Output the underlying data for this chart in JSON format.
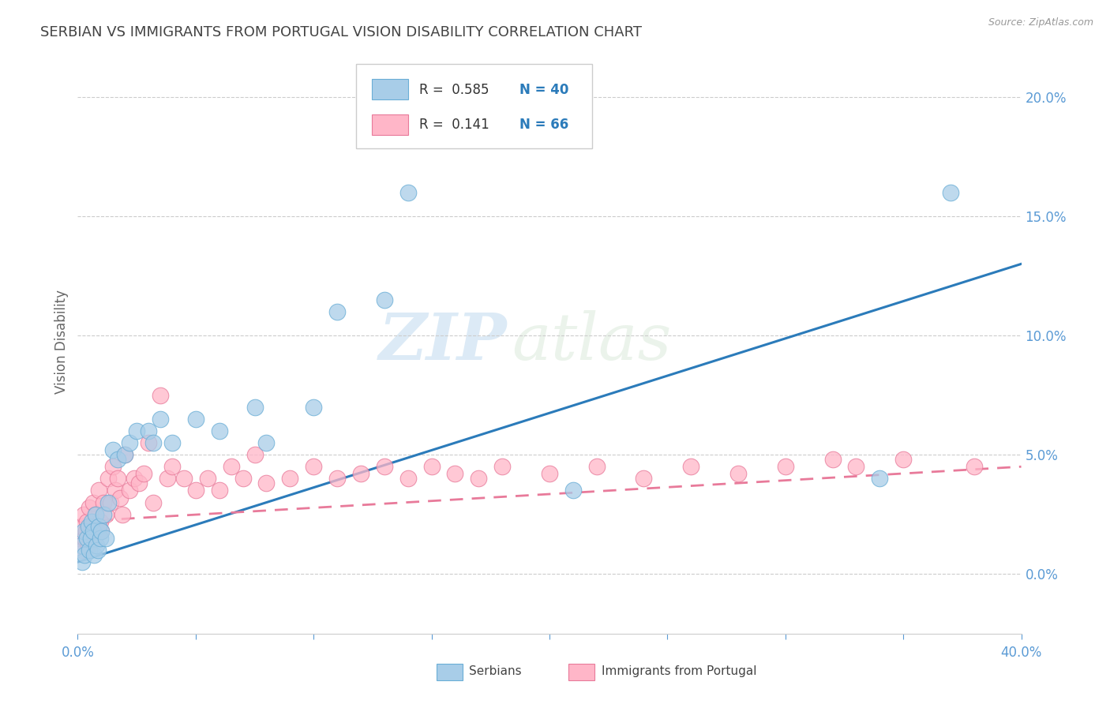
{
  "title": "SERBIAN VS IMMIGRANTS FROM PORTUGAL VISION DISABILITY CORRELATION CHART",
  "source": "Source: ZipAtlas.com",
  "ylabel": "Vision Disability",
  "yticks": [
    "0.0%",
    "5.0%",
    "10.0%",
    "15.0%",
    "20.0%"
  ],
  "ytick_values": [
    0.0,
    5.0,
    10.0,
    15.0,
    20.0
  ],
  "xrange": [
    0.0,
    40.0
  ],
  "yrange": [
    -2.5,
    22.0
  ],
  "legend_r1": "R =  0.585",
  "legend_n1": "N = 40",
  "legend_r2": "R =  0.141",
  "legend_n2": "N = 66",
  "watermark_zip": "ZIP",
  "watermark_atlas": "atlas",
  "series_serbian": {
    "color": "#a8cde8",
    "color_edge": "#6aaed6",
    "label": "Serbians",
    "x": [
      0.15,
      0.2,
      0.25,
      0.3,
      0.4,
      0.45,
      0.5,
      0.55,
      0.6,
      0.65,
      0.7,
      0.75,
      0.8,
      0.85,
      0.9,
      0.95,
      1.0,
      1.1,
      1.2,
      1.3,
      1.5,
      1.7,
      2.0,
      2.2,
      2.5,
      3.0,
      3.2,
      3.5,
      4.0,
      5.0,
      6.0,
      7.5,
      8.0,
      10.0,
      11.0,
      13.0,
      14.0,
      21.0,
      34.0,
      37.0
    ],
    "y": [
      1.2,
      0.5,
      1.8,
      0.8,
      1.5,
      2.0,
      1.0,
      1.5,
      2.2,
      1.8,
      0.8,
      2.5,
      1.2,
      1.0,
      2.0,
      1.5,
      1.8,
      2.5,
      1.5,
      3.0,
      5.2,
      4.8,
      5.0,
      5.5,
      6.0,
      6.0,
      5.5,
      6.5,
      5.5,
      6.5,
      6.0,
      7.0,
      5.5,
      7.0,
      11.0,
      11.5,
      16.0,
      3.5,
      4.0,
      16.0
    ]
  },
  "series_portugal": {
    "color": "#ffb6c8",
    "color_edge": "#e87a9a",
    "label": "Immigrants from Portugal",
    "x": [
      0.1,
      0.15,
      0.2,
      0.25,
      0.3,
      0.35,
      0.4,
      0.45,
      0.5,
      0.55,
      0.6,
      0.65,
      0.7,
      0.75,
      0.8,
      0.85,
      0.9,
      0.95,
      1.0,
      1.1,
      1.2,
      1.3,
      1.4,
      1.5,
      1.6,
      1.7,
      1.8,
      1.9,
      2.0,
      2.2,
      2.4,
      2.6,
      2.8,
      3.0,
      3.2,
      3.5,
      3.8,
      4.0,
      4.5,
      5.0,
      5.5,
      6.0,
      6.5,
      7.0,
      7.5,
      8.0,
      9.0,
      10.0,
      11.0,
      12.0,
      13.0,
      14.0,
      15.0,
      16.0,
      17.0,
      18.0,
      20.0,
      22.0,
      24.0,
      26.0,
      28.0,
      30.0,
      32.0,
      33.0,
      35.0,
      38.0
    ],
    "y": [
      1.5,
      2.0,
      1.0,
      2.5,
      1.5,
      1.8,
      2.2,
      1.2,
      2.8,
      1.5,
      2.0,
      3.0,
      1.5,
      2.5,
      2.0,
      1.8,
      3.5,
      2.2,
      1.8,
      3.0,
      2.5,
      4.0,
      3.0,
      4.5,
      3.5,
      4.0,
      3.2,
      2.5,
      5.0,
      3.5,
      4.0,
      3.8,
      4.2,
      5.5,
      3.0,
      7.5,
      4.0,
      4.5,
      4.0,
      3.5,
      4.0,
      3.5,
      4.5,
      4.0,
      5.0,
      3.8,
      4.0,
      4.5,
      4.0,
      4.2,
      4.5,
      4.0,
      4.5,
      4.2,
      4.0,
      4.5,
      4.2,
      4.5,
      4.0,
      4.5,
      4.2,
      4.5,
      4.8,
      4.5,
      4.8,
      4.5
    ]
  },
  "trend_serbian": {
    "color": "#2b7bba",
    "linestyle": "solid",
    "x_start": 0.0,
    "x_end": 40.0,
    "y_start": 0.5,
    "y_end": 13.0
  },
  "trend_portugal": {
    "color": "#e87a9a",
    "linestyle": "dashed",
    "x_start": 0.0,
    "x_end": 40.0,
    "y_start": 2.2,
    "y_end": 4.5
  },
  "background_color": "#ffffff",
  "grid_color": "#cccccc",
  "title_color": "#333333",
  "axis_label_color": "#666666",
  "tick_color": "#5b9bd5"
}
